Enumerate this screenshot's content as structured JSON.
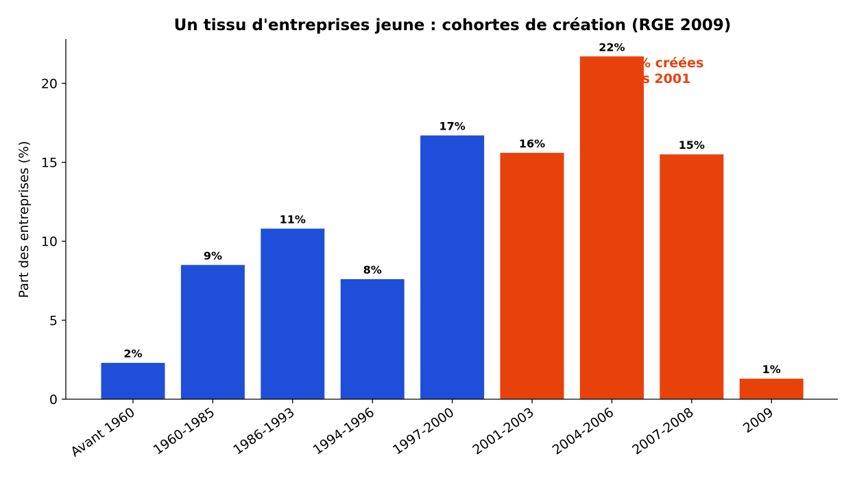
{
  "chart_data": {
    "type": "bar",
    "title": "Un tissu d'entreprises jeune : cohortes de création (RGE 2009)",
    "xlabel": "",
    "ylabel": "Part des entreprises (%)",
    "ylim": [
      0,
      22.8
    ],
    "yticks": [
      0,
      5,
      10,
      15,
      20
    ],
    "grid": false,
    "categories": [
      "Avant 1960",
      "1960-1985",
      "1986-1993",
      "1994-1996",
      "1997-2000",
      "2001-2003",
      "2004-2006",
      "2007-2008",
      "2009"
    ],
    "values": [
      2.3,
      8.5,
      10.8,
      7.6,
      16.7,
      15.6,
      21.7,
      15.5,
      1.3
    ],
    "labels": [
      "2%",
      "9%",
      "11%",
      "8%",
      "17%",
      "16%",
      "22%",
      "15%",
      "1%"
    ],
    "colors": [
      "#1f4fd8",
      "#1f4fd8",
      "#1f4fd8",
      "#1f4fd8",
      "#1f4fd8",
      "#e8420c",
      "#e8420c",
      "#e8420c",
      "#e8420c"
    ],
    "annotation": {
      "lines": [
        "% créées",
        "is 2001"
      ],
      "color": "#e8420c"
    }
  }
}
